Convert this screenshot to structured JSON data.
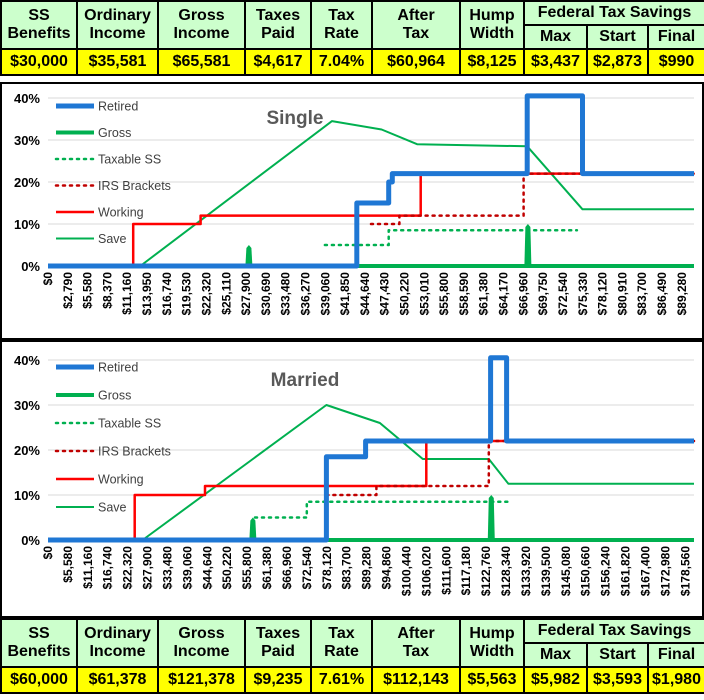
{
  "top_table": {
    "headers": [
      {
        "line1": "SS",
        "line2": "Benefits"
      },
      {
        "line1": "Ordinary",
        "line2": "Income"
      },
      {
        "line1": "Gross",
        "line2": "Income"
      },
      {
        "line1": "Taxes",
        "line2": "Paid"
      },
      {
        "line1": "Tax",
        "line2": "Rate"
      },
      {
        "line1": "After",
        "line2": "Tax"
      },
      {
        "line1": "Hump",
        "line2": "Width"
      }
    ],
    "group_header": "Federal Tax Savings",
    "sub_headers": [
      "Max",
      "Start",
      "Final"
    ],
    "values": [
      "$30,000",
      "$35,581",
      "$65,581",
      "$4,617",
      "7.04%",
      "$60,964",
      "$8,125",
      "$3,437",
      "$2,873",
      "$990"
    ]
  },
  "bottom_table": {
    "headers": [
      {
        "line1": "SS",
        "line2": "Benefits"
      },
      {
        "line1": "Ordinary",
        "line2": "Income"
      },
      {
        "line1": "Gross",
        "line2": "Income"
      },
      {
        "line1": "Taxes",
        "line2": "Paid"
      },
      {
        "line1": "Tax",
        "line2": "Rate"
      },
      {
        "line1": "After",
        "line2": "Tax"
      },
      {
        "line1": "Hump",
        "line2": "Width"
      }
    ],
    "group_header": "Federal Tax Savings",
    "sub_headers": [
      "Max",
      "Start",
      "Final"
    ],
    "values": [
      "$60,000",
      "$61,378",
      "$121,378",
      "$9,235",
      "7.61%",
      "$112,143",
      "$5,563",
      "$5,982",
      "$3,593",
      "$1,980"
    ]
  },
  "colors": {
    "retired": "#1f77d4",
    "gross": "#00b050",
    "taxable_ss": "#00b050",
    "irs": "#c00000",
    "working": "#ff0000",
    "save": "#00b050"
  },
  "chart_data": [
    {
      "type": "line",
      "title": "Single",
      "xmax": 91000,
      "ylim": [
        0,
        40
      ],
      "yticks": [
        0,
        10,
        20,
        30,
        40
      ],
      "ytick_labels": [
        "0%",
        "10%",
        "20%",
        "30%",
        "40%"
      ],
      "xtick_labels": [
        "$0",
        "$2,790",
        "$5,580",
        "$8,370",
        "$11,160",
        "$13,950",
        "$16,740",
        "$19,530",
        "$22,320",
        "$25,110",
        "$27,900",
        "$30,690",
        "$33,480",
        "$36,270",
        "$39,060",
        "$41,850",
        "$44,640",
        "$47,430",
        "$50,220",
        "$53,010",
        "$55,800",
        "$58,590",
        "$61,380",
        "$64,170",
        "$66,960",
        "$69,750",
        "$72,540",
        "$75,330",
        "$78,120",
        "$80,910",
        "$83,700",
        "$86,490",
        "$89,280"
      ],
      "xstep": 2790,
      "legend": [
        "Retired",
        "Gross",
        "Taxable SS",
        "IRS Brackets",
        "Working",
        "Save"
      ],
      "series": [
        {
          "name": "Retired",
          "style": "retired",
          "points": [
            [
              0,
              0
            ],
            [
              43500,
              0
            ],
            [
              43500,
              15
            ],
            [
              48000,
              15
            ],
            [
              48000,
              20
            ],
            [
              48500,
              20
            ],
            [
              48500,
              22
            ],
            [
              67500,
              22
            ],
            [
              67500,
              40.5
            ],
            [
              75300,
              40.5
            ],
            [
              75300,
              22
            ],
            [
              91000,
              22
            ]
          ]
        },
        {
          "name": "Gross",
          "style": "gross",
          "points": [
            [
              0,
              0
            ],
            [
              91000,
              0
            ]
          ],
          "spikes": [
            [
              28300,
              5
            ],
            [
              67600,
              10
            ]
          ]
        },
        {
          "name": "Taxable SS",
          "style": "taxable_ss",
          "points": [
            [
              39000,
              5
            ],
            [
              48000,
              5
            ],
            [
              48000,
              8.5
            ],
            [
              74500,
              8.5
            ]
          ]
        },
        {
          "name": "IRS Brackets",
          "style": "irs",
          "points": [
            [
              45500,
              10
            ],
            [
              49500,
              10
            ],
            [
              49500,
              12
            ],
            [
              67000,
              12
            ],
            [
              67000,
              22
            ],
            [
              91000,
              22
            ]
          ]
        },
        {
          "name": "Working",
          "style": "working",
          "points": [
            [
              12000,
              0
            ],
            [
              12000,
              10
            ],
            [
              21500,
              10
            ],
            [
              21500,
              12
            ],
            [
              52500,
              12
            ],
            [
              52500,
              22
            ],
            [
              91000,
              22
            ]
          ]
        },
        {
          "name": "Save",
          "style": "save",
          "points": [
            [
              13000,
              0
            ],
            [
              40000,
              34.5
            ],
            [
              47000,
              32.5
            ],
            [
              52000,
              29
            ],
            [
              67500,
              28.5
            ],
            [
              75300,
              13.5
            ],
            [
              91000,
              13.5
            ]
          ]
        }
      ]
    },
    {
      "type": "line",
      "title": "Married",
      "xmax": 181000,
      "ylim": [
        0,
        40
      ],
      "yticks": [
        0,
        10,
        20,
        30,
        40
      ],
      "ytick_labels": [
        "0%",
        "10%",
        "20%",
        "30%",
        "40%"
      ],
      "xtick_labels": [
        "$0",
        "$5,580",
        "$11,160",
        "$16,740",
        "$22,320",
        "$27,900",
        "$33,480",
        "$39,060",
        "$44,640",
        "$50,220",
        "$55,800",
        "$61,380",
        "$66,960",
        "$72,540",
        "$78,120",
        "$83,700",
        "$89,280",
        "$94,860",
        "$100,440",
        "$106,020",
        "$111,600",
        "$117,180",
        "$122,760",
        "$128,340",
        "$133,920",
        "$139,500",
        "$145,080",
        "$150,660",
        "$156,240",
        "$161,820",
        "$167,400",
        "$172,980",
        "$178,560"
      ],
      "xstep": 5580,
      "legend": [
        "Retired",
        "Gross",
        "Taxable SS",
        "IRS Brackets",
        "Working",
        "Save"
      ],
      "series": [
        {
          "name": "Retired",
          "style": "retired",
          "points": [
            [
              0,
              0
            ],
            [
              78000,
              0
            ],
            [
              78000,
              18.5
            ],
            [
              89000,
              18.5
            ],
            [
              89000,
              22
            ],
            [
              124000,
              22
            ],
            [
              124000,
              40.5
            ],
            [
              128500,
              40.5
            ],
            [
              128500,
              22
            ],
            [
              181000,
              22
            ]
          ]
        },
        {
          "name": "Gross",
          "style": "gross",
          "points": [
            [
              0,
              0
            ],
            [
              181000,
              0
            ]
          ],
          "spikes": [
            [
              57400,
              5
            ],
            [
              124200,
              10
            ]
          ]
        },
        {
          "name": "Taxable SS",
          "style": "taxable_ss",
          "points": [
            [
              58000,
              5
            ],
            [
              72500,
              5
            ],
            [
              72500,
              8.5
            ],
            [
              129000,
              8.5
            ]
          ]
        },
        {
          "name": "IRS Brackets",
          "style": "irs",
          "points": [
            [
              78000,
              10
            ],
            [
              92000,
              10
            ],
            [
              92000,
              12
            ],
            [
              123500,
              12
            ],
            [
              123500,
              22
            ],
            [
              181000,
              22
            ]
          ]
        },
        {
          "name": "Working",
          "style": "working",
          "points": [
            [
              24300,
              0
            ],
            [
              24300,
              10
            ],
            [
              44000,
              10
            ],
            [
              44000,
              12
            ],
            [
              106000,
              12
            ],
            [
              106000,
              22
            ],
            [
              181000,
              22
            ]
          ]
        },
        {
          "name": "Save",
          "style": "save",
          "points": [
            [
              26500,
              0
            ],
            [
              78000,
              30
            ],
            [
              93000,
              26
            ],
            [
              105000,
              18
            ],
            [
              123500,
              18
            ],
            [
              129000,
              12.5
            ],
            [
              181000,
              12.5
            ]
          ]
        }
      ]
    }
  ]
}
